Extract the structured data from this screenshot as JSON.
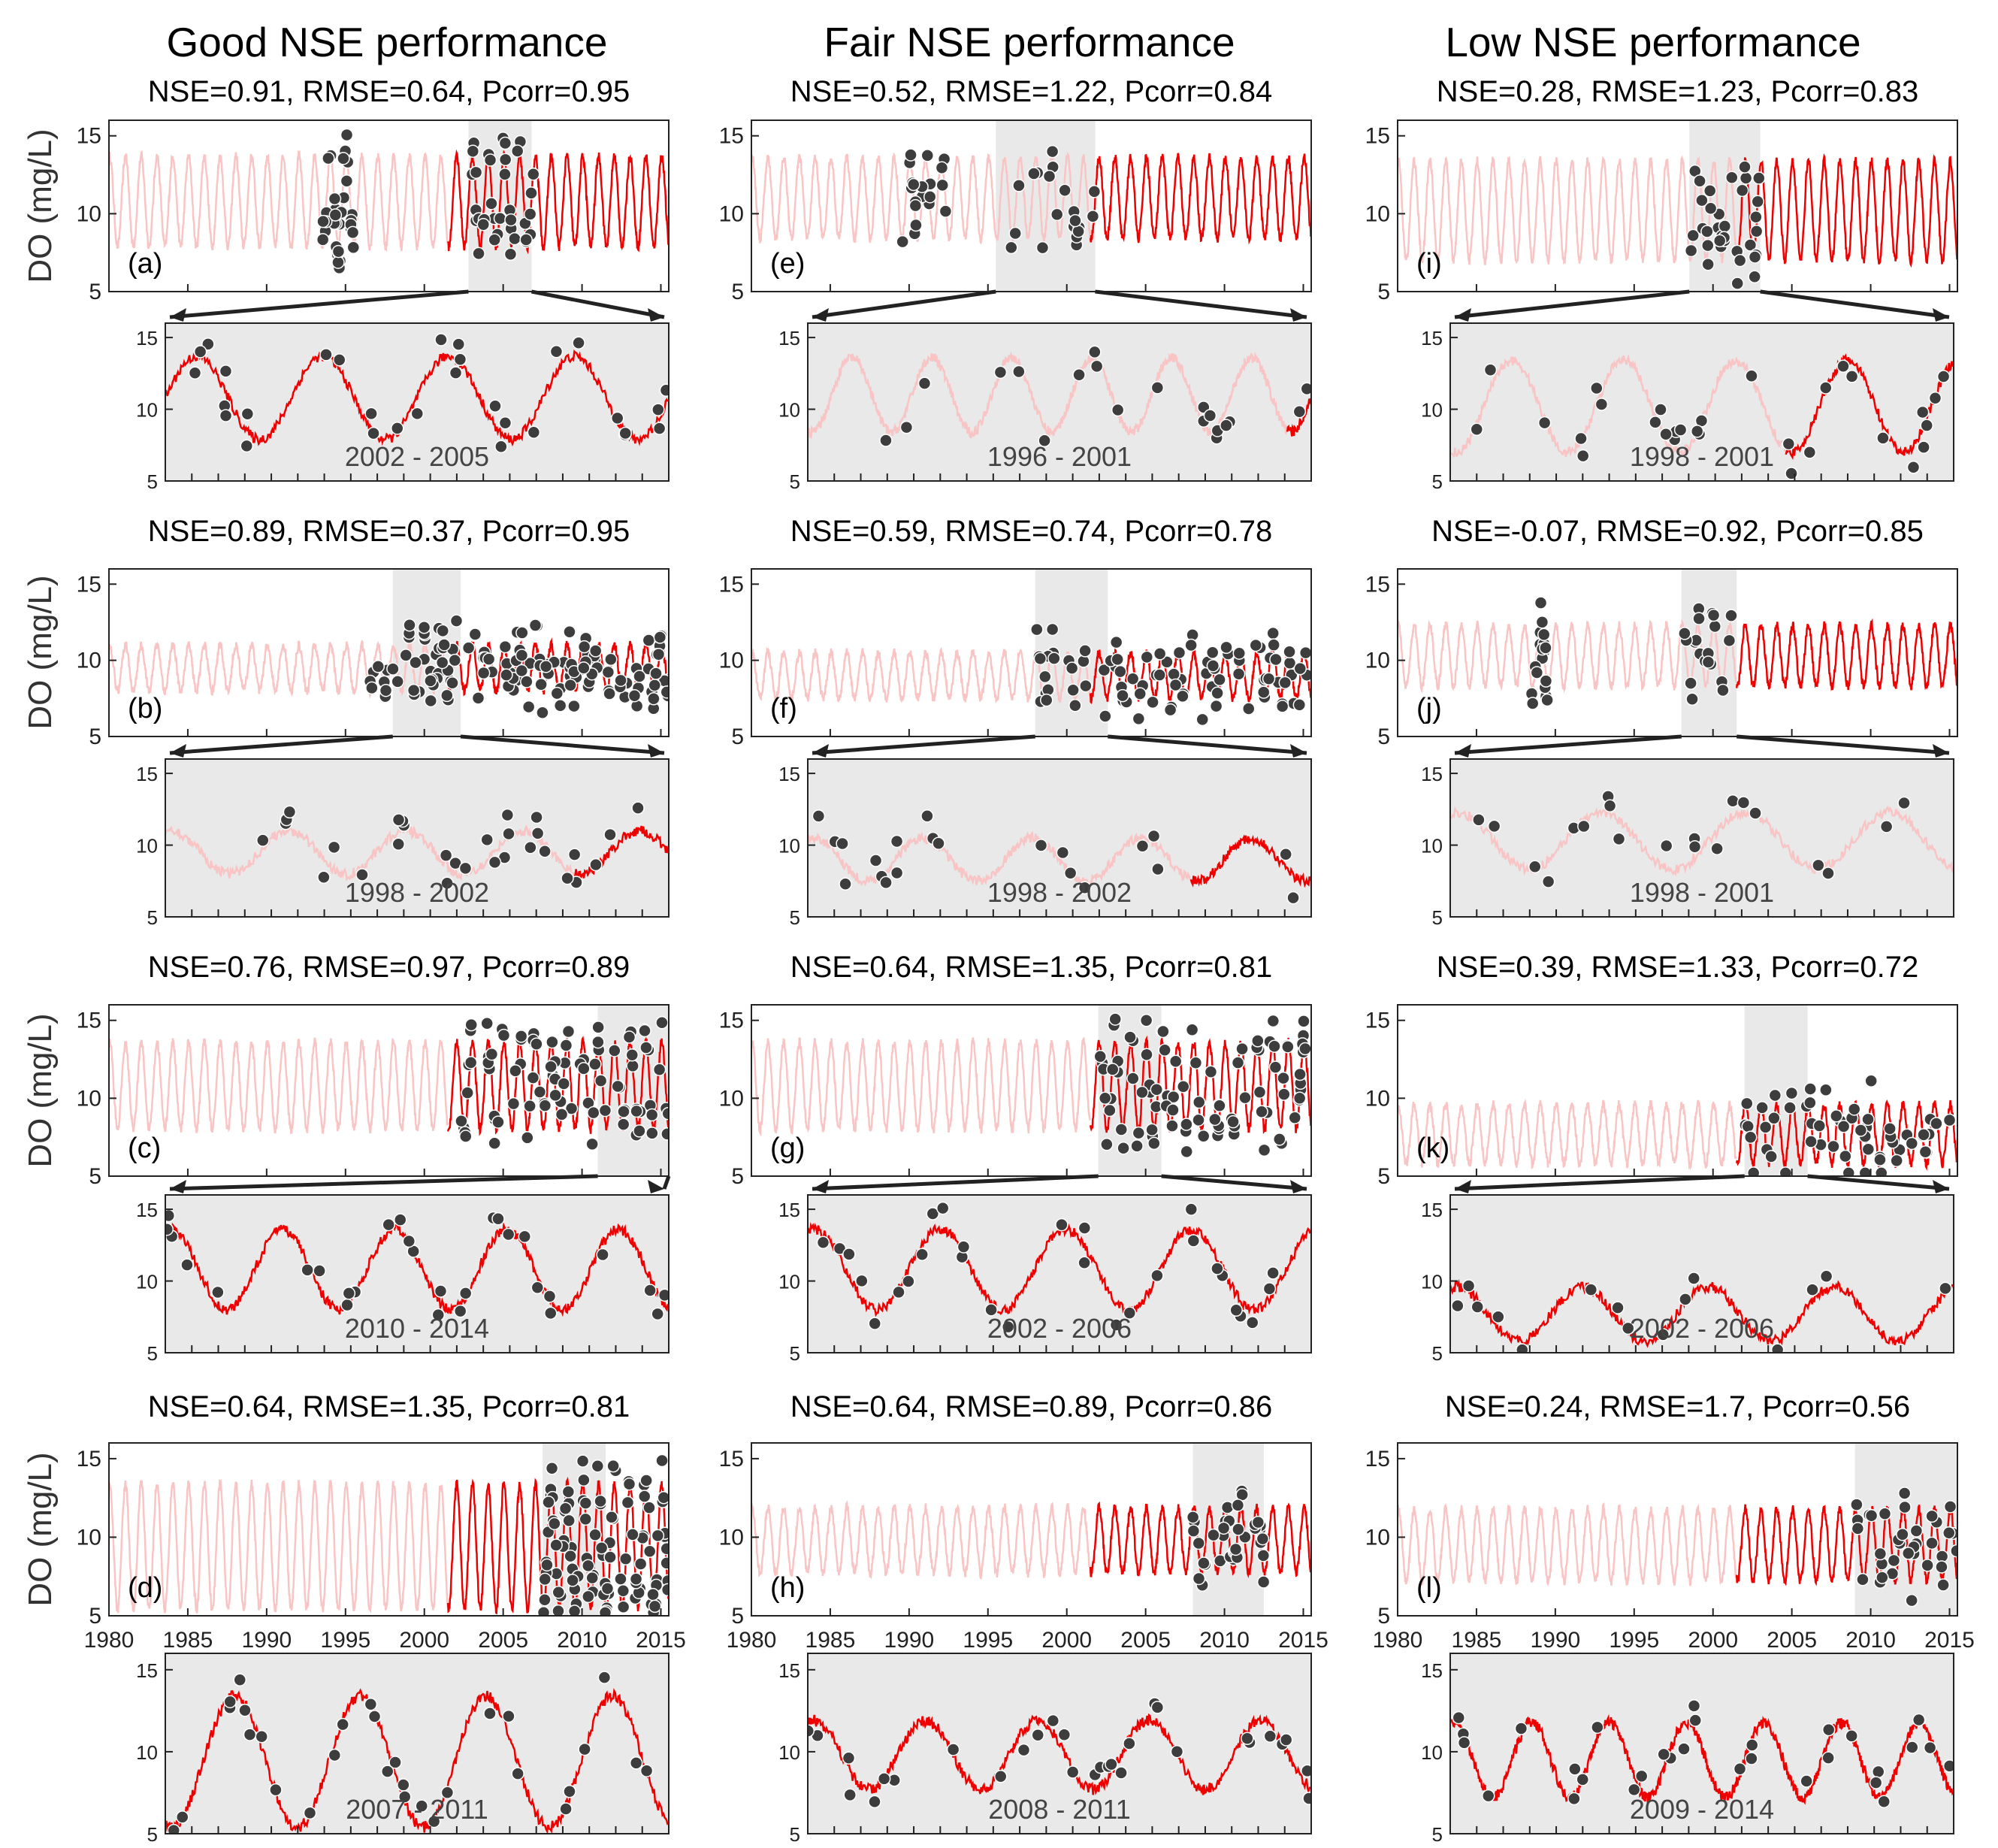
{
  "colors": {
    "historical": "#f8c4c4",
    "recent": "#ee0000",
    "obs_fill": "#3d3d3d",
    "obs_edge": "#ffffff",
    "highlight": "#e9e9e9",
    "axis": "#222222"
  },
  "column_titles": [
    "Good NSE performance",
    "Fair NSE performance",
    "Low NSE performance"
  ],
  "ylabel": "DO (mg/L)",
  "chart_data": {
    "type": "line",
    "x_ticks": [
      "1980",
      "1985",
      "1990",
      "1995",
      "2000",
      "2005",
      "2010",
      "2015"
    ],
    "xlim": [
      1980,
      2015.5
    ],
    "ylim": [
      5,
      16
    ],
    "y_ticks": [
      5,
      10,
      15
    ],
    "series": [
      "historical",
      "recent",
      "observed"
    ],
    "panels": [
      {
        "id": "a",
        "label": "(a)",
        "stats": "NSE=0.91, RMSE=0.64, Pcorr=0.95",
        "period": "2002 - 2005",
        "period_range": [
          2002.8,
          2006.8
        ],
        "mean": 10.8,
        "amp": 2.9,
        "split": 2001.5,
        "obs_ranges": [
          [
            1993.5,
            1995.5
          ],
          [
            2003,
            2007
          ]
        ],
        "n_obs": 70
      },
      {
        "id": "e",
        "label": "(e)",
        "stats": "NSE=0.52, RMSE=1.22, Pcorr=0.84",
        "period": "1996 - 2001",
        "period_range": [
          1995.5,
          2001.8
        ],
        "mean": 11.0,
        "amp": 2.6,
        "split": 2001.5,
        "obs_ranges": [
          [
            1989.5,
            1992.5
          ],
          [
            1995.5,
            2001.8
          ]
        ],
        "n_obs": 40
      },
      {
        "id": "i",
        "label": "(i)",
        "stats": "NSE=0.28, RMSE=1.23, Pcorr=0.83",
        "period": "1998 - 2001",
        "period_range": [
          1998.5,
          2003.0
        ],
        "mean": 10.2,
        "amp": 3.2,
        "split": 2001.5,
        "obs_ranges": [
          [
            1998.5,
            2003.0
          ]
        ],
        "n_obs": 35
      },
      {
        "id": "b",
        "label": "(b)",
        "stats": "NSE=0.89, RMSE=0.37, Pcorr=0.95",
        "period": "1998 - 2002",
        "period_range": [
          1998.0,
          2002.3
        ],
        "mean": 9.5,
        "amp": 1.5,
        "split": 2001.5,
        "obs_ranges": [
          [
            1996.5,
            2015.5
          ]
        ],
        "n_obs": 140
      },
      {
        "id": "f",
        "label": "(f)",
        "stats": "NSE=0.59, RMSE=0.74, Pcorr=0.78",
        "period": "1998 - 2002",
        "period_range": [
          1998.0,
          2002.6
        ],
        "mean": 9.0,
        "amp": 1.5,
        "split": 2001.5,
        "obs_ranges": [
          [
            1998.0,
            2015.5
          ]
        ],
        "n_obs": 90
      },
      {
        "id": "j",
        "label": "(j)",
        "stats": "NSE=-0.07, RMSE=0.92, Pcorr=0.85",
        "period": "1998 - 2001",
        "period_range": [
          1998.0,
          2001.5
        ],
        "mean": 10.3,
        "amp": 2.0,
        "split": 2001.5,
        "obs_ranges": [
          [
            1988.5,
            1989.5
          ],
          [
            1998.0,
            2001.5
          ]
        ],
        "n_obs": 40
      },
      {
        "id": "c",
        "label": "(c)",
        "stats": "NSE=0.76, RMSE=0.97, Pcorr=0.89",
        "period": "2010 - 2014",
        "period_range": [
          2011.0,
          2015.5
        ],
        "mean": 10.8,
        "amp": 2.8,
        "split": 2001.5,
        "obs_ranges": [
          [
            2002,
            2015.5
          ]
        ],
        "n_obs": 90
      },
      {
        "id": "g",
        "label": "(g)",
        "stats": "NSE=0.64, RMSE=1.35, Pcorr=0.81",
        "period": "2002 - 2006",
        "period_range": [
          2002.0,
          2006.0
        ],
        "mean": 10.8,
        "amp": 2.8,
        "split": 2001.5,
        "obs_ranges": [
          [
            2002,
            2015.5
          ]
        ],
        "n_obs": 90
      },
      {
        "id": "k",
        "label": "(k)",
        "stats": "NSE=0.39, RMSE=1.33, Pcorr=0.72",
        "period": "2002 - 2006",
        "period_range": [
          2002.0,
          2006.0
        ],
        "mean": 7.7,
        "amp": 1.9,
        "split": 2001.5,
        "obs_ranges": [
          [
            2002,
            2015.5
          ]
        ],
        "n_obs": 55
      },
      {
        "id": "d",
        "label": "(d)",
        "stats": "NSE=0.64, RMSE=1.35, Pcorr=0.81",
        "period": "2007 - 2011",
        "period_range": [
          2007.5,
          2011.5
        ],
        "mean": 9.4,
        "amp": 4.0,
        "split": 2001.5,
        "obs_ranges": [
          [
            2007.5,
            2015.5
          ]
        ],
        "n_obs": 110
      },
      {
        "id": "h",
        "label": "(h)",
        "stats": "NSE=0.64, RMSE=0.89, Pcorr=0.86",
        "period": "2008 - 2011",
        "period_range": [
          2008.0,
          2012.5
        ],
        "mean": 9.8,
        "amp": 2.1,
        "split": 2001.5,
        "obs_ranges": [
          [
            2008.0,
            2012.5
          ]
        ],
        "n_obs": 35
      },
      {
        "id": "l",
        "label": "(l)",
        "stats": "NSE=0.24, RMSE=1.7, Pcorr=0.56",
        "period": "2009 - 2014",
        "period_range": [
          2009.0,
          2015.5
        ],
        "mean": 9.5,
        "amp": 2.3,
        "split": 2001.5,
        "obs_ranges": [
          [
            2009.0,
            2015.5
          ]
        ],
        "n_obs": 35
      }
    ]
  }
}
